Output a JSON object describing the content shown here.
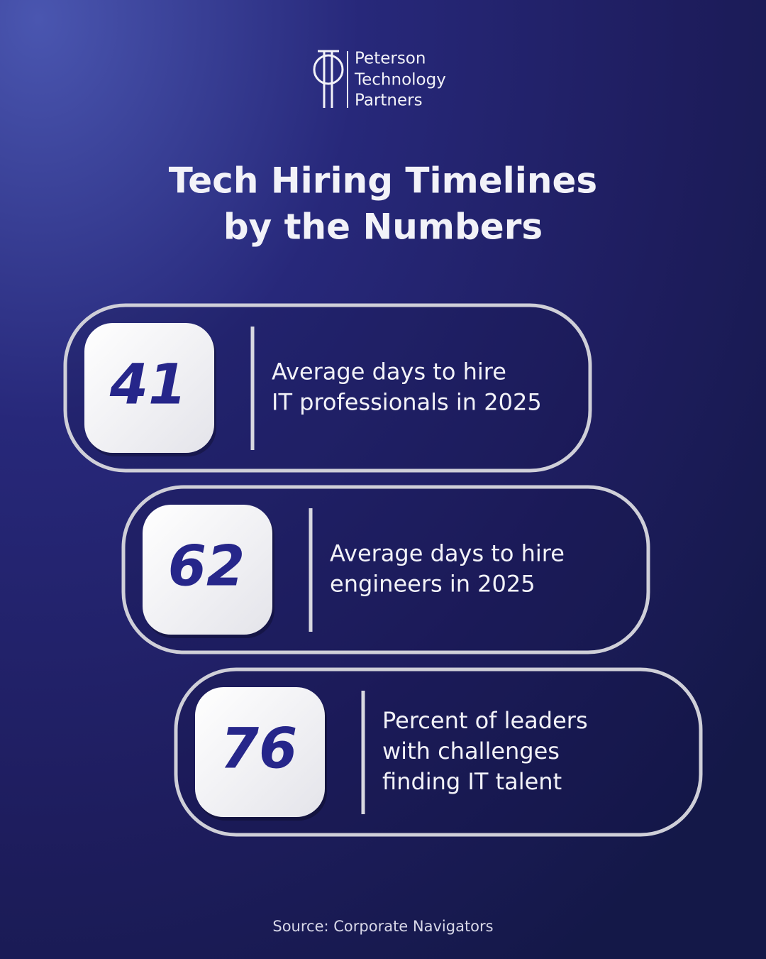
{
  "logo": {
    "lines": [
      "Peterson",
      "Technology",
      "Partners"
    ]
  },
  "title": {
    "lines": [
      "Tech Hiring Timelines",
      "by the Numbers"
    ]
  },
  "stats": [
    {
      "value": 41,
      "lines": [
        "Average days to hire",
        "IT professionals in 2025"
      ]
    },
    {
      "value": 62,
      "lines": [
        "Average days to hire",
        "engineers in 2025"
      ]
    },
    {
      "value": 76,
      "lines": [
        "Percent of leaders",
        "with challenges",
        "finding IT talent"
      ]
    }
  ],
  "source": "Source: Corporate Navigators"
}
